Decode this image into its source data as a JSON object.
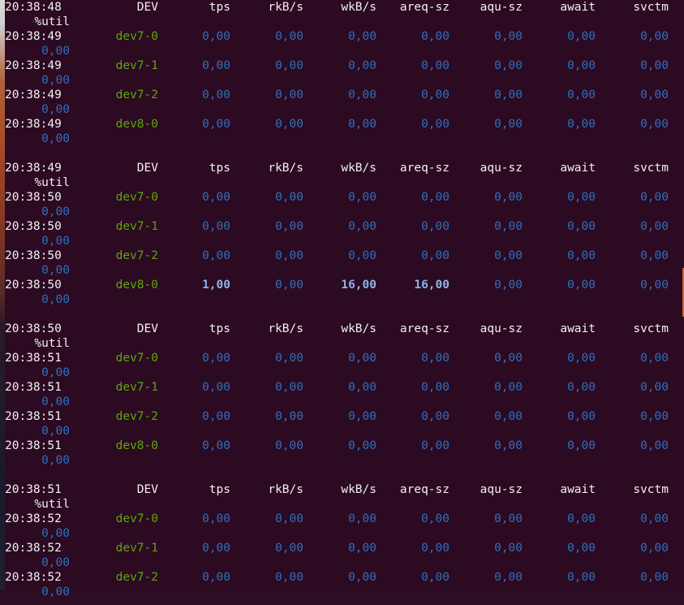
{
  "headers": [
    "DEV",
    "tps",
    "rkB/s",
    "wkB/s",
    "areq-sz",
    "aqu-sz",
    "await",
    "svctm"
  ],
  "util_header": "%util",
  "blocks": [
    {
      "header_time": "20:38:48",
      "rows": [
        {
          "time": "20:38:49",
          "dev": "dev7-0",
          "vals": [
            "0,00",
            "0,00",
            "0,00",
            "0,00",
            "0,00",
            "0,00",
            "0,00"
          ],
          "util": "0,00"
        },
        {
          "time": "20:38:49",
          "dev": "dev7-1",
          "vals": [
            "0,00",
            "0,00",
            "0,00",
            "0,00",
            "0,00",
            "0,00",
            "0,00"
          ],
          "util": "0,00"
        },
        {
          "time": "20:38:49",
          "dev": "dev7-2",
          "vals": [
            "0,00",
            "0,00",
            "0,00",
            "0,00",
            "0,00",
            "0,00",
            "0,00"
          ],
          "util": "0,00"
        },
        {
          "time": "20:38:49",
          "dev": "dev8-0",
          "vals": [
            "0,00",
            "0,00",
            "0,00",
            "0,00",
            "0,00",
            "0,00",
            "0,00"
          ],
          "util": "0,00"
        }
      ]
    },
    {
      "header_time": "20:38:49",
      "rows": [
        {
          "time": "20:38:50",
          "dev": "dev7-0",
          "vals": [
            "0,00",
            "0,00",
            "0,00",
            "0,00",
            "0,00",
            "0,00",
            "0,00"
          ],
          "util": "0,00"
        },
        {
          "time": "20:38:50",
          "dev": "dev7-1",
          "vals": [
            "0,00",
            "0,00",
            "0,00",
            "0,00",
            "0,00",
            "0,00",
            "0,00"
          ],
          "util": "0,00"
        },
        {
          "time": "20:38:50",
          "dev": "dev7-2",
          "vals": [
            "0,00",
            "0,00",
            "0,00",
            "0,00",
            "0,00",
            "0,00",
            "0,00"
          ],
          "util": "0,00"
        },
        {
          "time": "20:38:50",
          "dev": "dev8-0",
          "vals": [
            "1,00",
            "0,00",
            "16,00",
            "16,00",
            "0,00",
            "0,00",
            "0,00"
          ],
          "bold": [
            true,
            false,
            true,
            true,
            false,
            false,
            false
          ],
          "util": "0,00"
        }
      ]
    },
    {
      "header_time": "20:38:50",
      "rows": [
        {
          "time": "20:38:51",
          "dev": "dev7-0",
          "vals": [
            "0,00",
            "0,00",
            "0,00",
            "0,00",
            "0,00",
            "0,00",
            "0,00"
          ],
          "util": "0,00"
        },
        {
          "time": "20:38:51",
          "dev": "dev7-1",
          "vals": [
            "0,00",
            "0,00",
            "0,00",
            "0,00",
            "0,00",
            "0,00",
            "0,00"
          ],
          "util": "0,00"
        },
        {
          "time": "20:38:51",
          "dev": "dev7-2",
          "vals": [
            "0,00",
            "0,00",
            "0,00",
            "0,00",
            "0,00",
            "0,00",
            "0,00"
          ],
          "util": "0,00"
        },
        {
          "time": "20:38:51",
          "dev": "dev8-0",
          "vals": [
            "0,00",
            "0,00",
            "0,00",
            "0,00",
            "0,00",
            "0,00",
            "0,00"
          ],
          "util": "0,00"
        }
      ]
    },
    {
      "header_time": "20:38:51",
      "rows": [
        {
          "time": "20:38:52",
          "dev": "dev7-0",
          "vals": [
            "0,00",
            "0,00",
            "0,00",
            "0,00",
            "0,00",
            "0,00",
            "0,00"
          ],
          "util": "0,00"
        },
        {
          "time": "20:38:52",
          "dev": "dev7-1",
          "vals": [
            "0,00",
            "0,00",
            "0,00",
            "0,00",
            "0,00",
            "0,00",
            "0,00"
          ],
          "util": "0,00"
        },
        {
          "time": "20:38:52",
          "dev": "dev7-2",
          "vals": [
            "0,00",
            "0,00",
            "0,00",
            "0,00",
            "0,00",
            "0,00",
            "0,00"
          ],
          "util": "0,00"
        }
      ]
    }
  ],
  "colors": {
    "background": "#2c0a22",
    "header_text": "#f1f1f1",
    "device_name": "#5ba80a",
    "value": "#2f6fbf",
    "value_highlight": "#8ab4ea"
  }
}
